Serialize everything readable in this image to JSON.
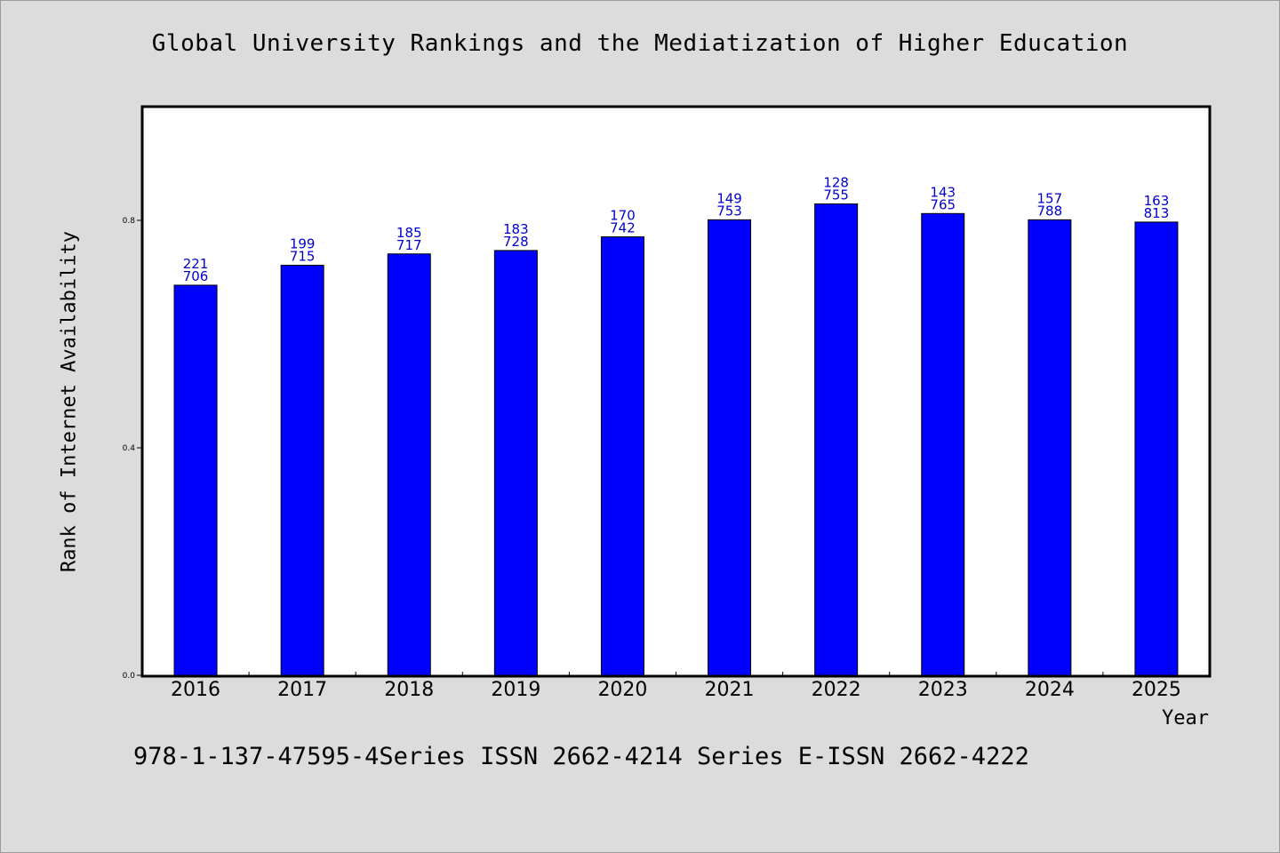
{
  "chart_data": {
    "type": "bar",
    "title": "Global University Rankings and the Mediatization of Higher Education",
    "xlabel": "Year",
    "ylabel": "Rank of Internet Availability",
    "categories": [
      "2016",
      "2017",
      "2018",
      "2019",
      "2020",
      "2021",
      "2022",
      "2023",
      "2024",
      "2025"
    ],
    "values": [
      0.686,
      0.721,
      0.741,
      0.747,
      0.771,
      0.801,
      0.829,
      0.812,
      0.801,
      0.797
    ],
    "label_top": [
      "221",
      "199",
      "185",
      "183",
      "170",
      "149",
      "128",
      "143",
      "157",
      "163"
    ],
    "label_bottom": [
      "706",
      "715",
      "717",
      "728",
      "742",
      "753",
      "755",
      "765",
      "788",
      "813"
    ],
    "yticks": [
      "0.0",
      "0.4",
      "0.8"
    ],
    "ytick_values": [
      0.0,
      0.4,
      0.8
    ],
    "ylim": [
      0.0,
      1.0
    ],
    "bar_color": "#0000ff",
    "label_color": "#0000cc",
    "grid": false,
    "legend": "none"
  },
  "footer": "978-1-137-47595-4Series ISSN 2662-4214 Series E-ISSN 2662-4222"
}
